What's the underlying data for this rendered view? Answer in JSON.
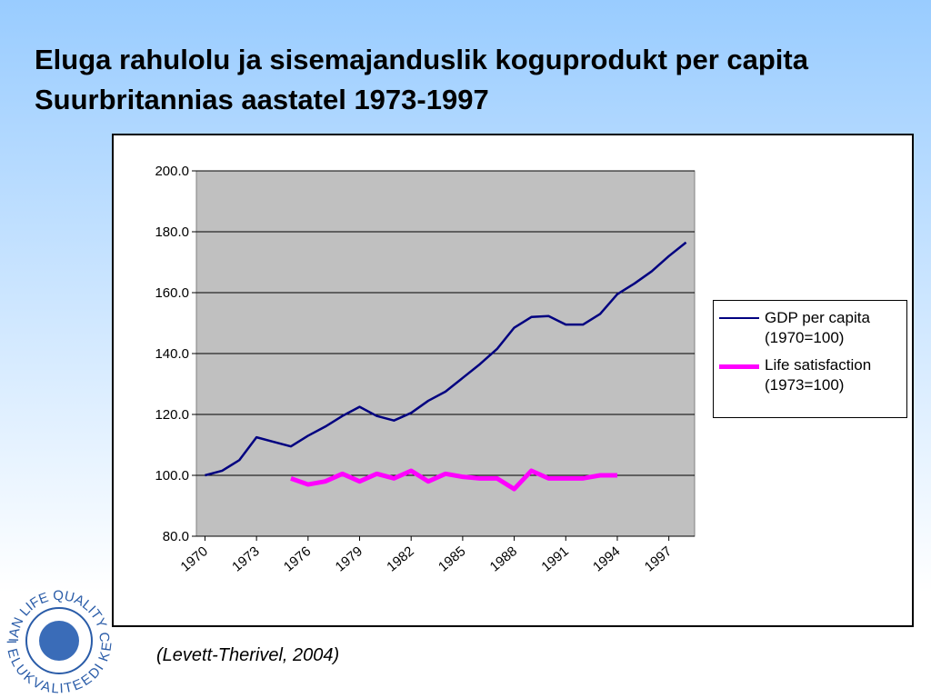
{
  "slide_title": "Eluga rahulolu ja sisemajanduslik koguprodukt per capita Suurbritannias aastatel 1973-1997",
  "source": "(Levett-Therivel, 2004)",
  "logo": {
    "top_text": "ESTONIAN LIFE QUALITY CENTRE",
    "bottom_text": "EESTI ELUKVALITEEDI KESKUS"
  },
  "chart_data": {
    "type": "line",
    "x": [
      1970,
      1971,
      1972,
      1973,
      1974,
      1975,
      1976,
      1977,
      1978,
      1979,
      1980,
      1981,
      1982,
      1983,
      1984,
      1985,
      1986,
      1987,
      1988,
      1989,
      1990,
      1991,
      1992,
      1993,
      1994,
      1995,
      1996,
      1997,
      1998
    ],
    "series": [
      {
        "name": "GDP per capita (1970=100)",
        "color": "#000080",
        "values": [
          100,
          101.5,
          105,
          112.5,
          111,
          109.5,
          113,
          116,
          119.5,
          122.5,
          119.5,
          118,
          120.5,
          124.5,
          127.5,
          132,
          136.5,
          141.5,
          148.5,
          152,
          152.3,
          149.5,
          149.5,
          153,
          159.5,
          163,
          167,
          172,
          176.5
        ]
      },
      {
        "name": "Life satisfaction (1973=100)",
        "color": "#ff00ff",
        "values": [
          null,
          null,
          null,
          null,
          null,
          99,
          97,
          98,
          100.5,
          98,
          100.5,
          99,
          101.5,
          98,
          100.5,
          99.5,
          99,
          99,
          95.5,
          101.5,
          99,
          99,
          99,
          100,
          100,
          null,
          null,
          null,
          null
        ]
      }
    ],
    "xlim": [
      1969.5,
      1998.5
    ],
    "xticks": [
      1970,
      1973,
      1976,
      1979,
      1982,
      1985,
      1988,
      1991,
      1994,
      1997
    ],
    "ylim": [
      80,
      200
    ],
    "yticks": [
      {
        "value": 80,
        "label": "80.0"
      },
      {
        "value": 100,
        "label": "100.0"
      },
      {
        "value": 120,
        "label": "120.0"
      },
      {
        "value": 140,
        "label": "140.0"
      },
      {
        "value": 160,
        "label": "160.0"
      },
      {
        "value": 180,
        "label": "180.0"
      },
      {
        "value": 200,
        "label": "200.0"
      }
    ],
    "grid": true,
    "legend": "right"
  }
}
